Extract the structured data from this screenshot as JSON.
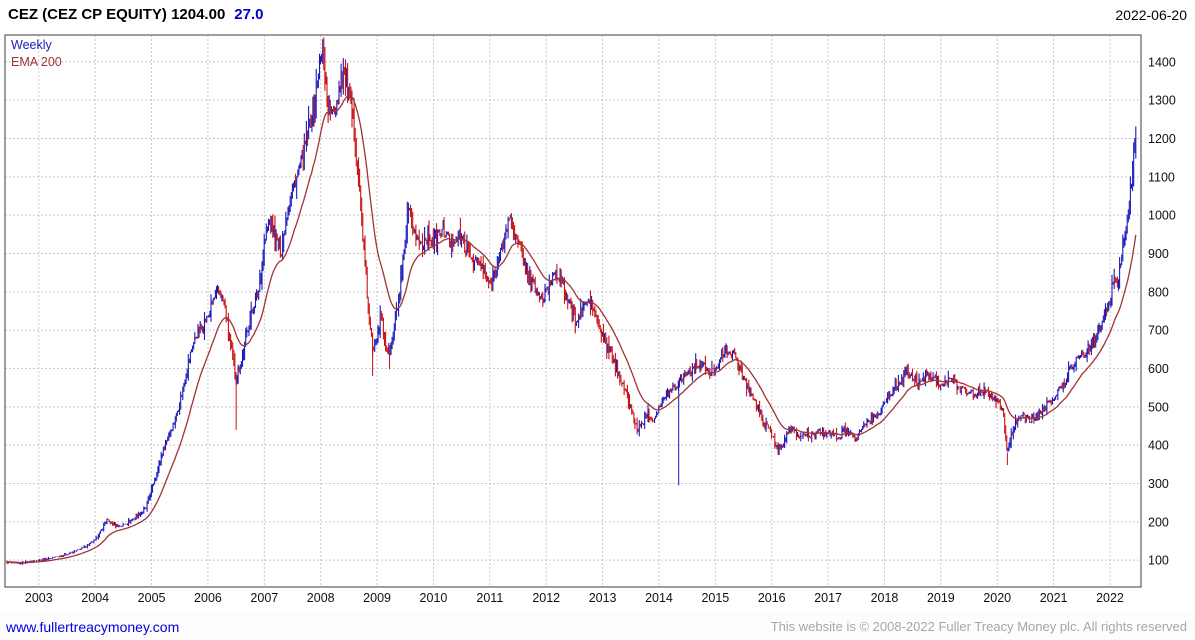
{
  "header": {
    "title": "CEZ (CEZ CP EQUITY) 1204.00",
    "change": "27.0",
    "date": "2022-06-20"
  },
  "legend": [
    {
      "label": "Weekly",
      "color": "#1a1ab8"
    },
    {
      "label": "EMA 200",
      "color": "#a03434"
    }
  ],
  "footer": {
    "link": "www.fullertreacymoney.com",
    "copyright": "This website is © 2008-2022 Fuller Treacy Money plc. All rights reserved"
  },
  "chart_data": {
    "type": "candlestick",
    "title": "CEZ (CEZ CP EQUITY)",
    "frequency": "Weekly",
    "overlay": "EMA 200",
    "last_price": 1204.0,
    "change": 27.0,
    "xlim": [
      2002.4,
      2022.55
    ],
    "ylim": [
      30,
      1470
    ],
    "x_ticks": [
      2003,
      2004,
      2005,
      2006,
      2007,
      2008,
      2009,
      2010,
      2011,
      2012,
      2013,
      2014,
      2015,
      2016,
      2017,
      2018,
      2019,
      2020,
      2021,
      2022
    ],
    "y_ticks": [
      100,
      200,
      300,
      400,
      500,
      600,
      700,
      800,
      900,
      1000,
      1100,
      1200,
      1300,
      1400
    ],
    "grid": "dashed",
    "legend_position": "top-left",
    "up_color": "#1a1ab8",
    "down_color": "#cc1111",
    "ema_color": "#a03434",
    "grid_color": "#c8c8c8",
    "border_color": "#3c3c3c",
    "ema_span_weeks": 29,
    "close_anchors": [
      [
        2002.42,
        95
      ],
      [
        2002.6,
        90
      ],
      [
        2002.75,
        94
      ],
      [
        2002.9,
        98
      ],
      [
        2003.0,
        100
      ],
      [
        2003.15,
        103
      ],
      [
        2003.3,
        108
      ],
      [
        2003.45,
        113
      ],
      [
        2003.6,
        120
      ],
      [
        2003.75,
        130
      ],
      [
        2003.9,
        142
      ],
      [
        2004.0,
        152
      ],
      [
        2004.1,
        175
      ],
      [
        2004.2,
        205
      ],
      [
        2004.3,
        195
      ],
      [
        2004.45,
        188
      ],
      [
        2004.6,
        200
      ],
      [
        2004.75,
        215
      ],
      [
        2004.9,
        235
      ],
      [
        2005.0,
        285
      ],
      [
        2005.1,
        330
      ],
      [
        2005.2,
        385
      ],
      [
        2005.3,
        425
      ],
      [
        2005.4,
        460
      ],
      [
        2005.5,
        510
      ],
      [
        2005.6,
        580
      ],
      [
        2005.7,
        645
      ],
      [
        2005.8,
        690
      ],
      [
        2005.9,
        710
      ],
      [
        2006.0,
        735
      ],
      [
        2006.1,
        780
      ],
      [
        2006.2,
        805
      ],
      [
        2006.3,
        760
      ],
      [
        2006.4,
        660
      ],
      [
        2006.5,
        575
      ],
      [
        2006.6,
        620
      ],
      [
        2006.7,
        700
      ],
      [
        2006.8,
        760
      ],
      [
        2006.9,
        800
      ],
      [
        2007.0,
        930
      ],
      [
        2007.1,
        985
      ],
      [
        2007.2,
        940
      ],
      [
        2007.3,
        905
      ],
      [
        2007.4,
        1005
      ],
      [
        2007.5,
        1070
      ],
      [
        2007.6,
        1110
      ],
      [
        2007.7,
        1165
      ],
      [
        2007.8,
        1230
      ],
      [
        2007.9,
        1300
      ],
      [
        2007.97,
        1390
      ],
      [
        2008.05,
        1425
      ],
      [
        2008.12,
        1300
      ],
      [
        2008.2,
        1255
      ],
      [
        2008.3,
        1310
      ],
      [
        2008.4,
        1380
      ],
      [
        2008.47,
        1340
      ],
      [
        2008.55,
        1270
      ],
      [
        2008.62,
        1180
      ],
      [
        2008.7,
        1050
      ],
      [
        2008.78,
        880
      ],
      [
        2008.85,
        740
      ],
      [
        2008.92,
        650
      ],
      [
        2009.0,
        690
      ],
      [
        2009.07,
        740
      ],
      [
        2009.15,
        660
      ],
      [
        2009.22,
        640
      ],
      [
        2009.3,
        700
      ],
      [
        2009.4,
        800
      ],
      [
        2009.5,
        920
      ],
      [
        2009.55,
        1005
      ],
      [
        2009.62,
        980
      ],
      [
        2009.7,
        940
      ],
      [
        2009.8,
        925
      ],
      [
        2009.9,
        950
      ],
      [
        2010.0,
        935
      ],
      [
        2010.1,
        950
      ],
      [
        2010.2,
        960
      ],
      [
        2010.3,
        925
      ],
      [
        2010.4,
        945
      ],
      [
        2010.5,
        940
      ],
      [
        2010.6,
        905
      ],
      [
        2010.7,
        885
      ],
      [
        2010.8,
        875
      ],
      [
        2010.9,
        855
      ],
      [
        2011.0,
        815
      ],
      [
        2011.1,
        855
      ],
      [
        2011.2,
        905
      ],
      [
        2011.3,
        965
      ],
      [
        2011.37,
        1000
      ],
      [
        2011.45,
        945
      ],
      [
        2011.55,
        905
      ],
      [
        2011.65,
        860
      ],
      [
        2011.75,
        825
      ],
      [
        2011.85,
        795
      ],
      [
        2011.95,
        780
      ],
      [
        2012.05,
        815
      ],
      [
        2012.15,
        855
      ],
      [
        2012.25,
        840
      ],
      [
        2012.35,
        790
      ],
      [
        2012.45,
        755
      ],
      [
        2012.55,
        720
      ],
      [
        2012.65,
        760
      ],
      [
        2012.75,
        775
      ],
      [
        2012.85,
        750
      ],
      [
        2012.95,
        700
      ],
      [
        2013.05,
        665
      ],
      [
        2013.15,
        640
      ],
      [
        2013.25,
        600
      ],
      [
        2013.35,
        565
      ],
      [
        2013.45,
        520
      ],
      [
        2013.55,
        470
      ],
      [
        2013.62,
        440
      ],
      [
        2013.7,
        455
      ],
      [
        2013.8,
        485
      ],
      [
        2013.9,
        465
      ],
      [
        2014.0,
        500
      ],
      [
        2014.1,
        520
      ],
      [
        2014.2,
        545
      ],
      [
        2014.3,
        555
      ],
      [
        2014.4,
        575
      ],
      [
        2014.5,
        590
      ],
      [
        2014.6,
        600
      ],
      [
        2014.7,
        615
      ],
      [
        2014.8,
        605
      ],
      [
        2014.9,
        585
      ],
      [
        2015.0,
        600
      ],
      [
        2015.1,
        630
      ],
      [
        2015.2,
        650
      ],
      [
        2015.3,
        640
      ],
      [
        2015.4,
        615
      ],
      [
        2015.5,
        575
      ],
      [
        2015.6,
        545
      ],
      [
        2015.7,
        515
      ],
      [
        2015.8,
        480
      ],
      [
        2015.9,
        450
      ],
      [
        2016.0,
        430
      ],
      [
        2016.1,
        390
      ],
      [
        2016.2,
        405
      ],
      [
        2016.3,
        440
      ],
      [
        2016.4,
        435
      ],
      [
        2016.5,
        420
      ],
      [
        2016.6,
        430
      ],
      [
        2016.7,
        425
      ],
      [
        2016.8,
        430
      ],
      [
        2016.9,
        435
      ],
      [
        2017.0,
        430
      ],
      [
        2017.1,
        425
      ],
      [
        2017.2,
        420
      ],
      [
        2017.3,
        440
      ],
      [
        2017.4,
        425
      ],
      [
        2017.5,
        415
      ],
      [
        2017.6,
        450
      ],
      [
        2017.7,
        460
      ],
      [
        2017.8,
        470
      ],
      [
        2017.9,
        485
      ],
      [
        2018.0,
        510
      ],
      [
        2018.1,
        535
      ],
      [
        2018.2,
        555
      ],
      [
        2018.3,
        570
      ],
      [
        2018.4,
        590
      ],
      [
        2018.5,
        575
      ],
      [
        2018.6,
        560
      ],
      [
        2018.7,
        580
      ],
      [
        2018.8,
        585
      ],
      [
        2018.9,
        575
      ],
      [
        2019.0,
        555
      ],
      [
        2019.1,
        565
      ],
      [
        2019.2,
        570
      ],
      [
        2019.3,
        555
      ],
      [
        2019.4,
        545
      ],
      [
        2019.5,
        540
      ],
      [
        2019.6,
        530
      ],
      [
        2019.7,
        540
      ],
      [
        2019.8,
        545
      ],
      [
        2019.9,
        530
      ],
      [
        2020.0,
        515
      ],
      [
        2020.1,
        490
      ],
      [
        2020.18,
        380
      ],
      [
        2020.28,
        445
      ],
      [
        2020.38,
        470
      ],
      [
        2020.48,
        475
      ],
      [
        2020.58,
        465
      ],
      [
        2020.68,
        475
      ],
      [
        2020.78,
        485
      ],
      [
        2020.88,
        505
      ],
      [
        2021.0,
        525
      ],
      [
        2021.1,
        545
      ],
      [
        2021.2,
        565
      ],
      [
        2021.3,
        600
      ],
      [
        2021.4,
        625
      ],
      [
        2021.5,
        635
      ],
      [
        2021.6,
        645
      ],
      [
        2021.7,
        670
      ],
      [
        2021.8,
        695
      ],
      [
        2021.9,
        735
      ],
      [
        2022.0,
        775
      ],
      [
        2022.07,
        845
      ],
      [
        2022.14,
        820
      ],
      [
        2022.2,
        895
      ],
      [
        2022.27,
        950
      ],
      [
        2022.33,
        1010
      ],
      [
        2022.4,
        1120
      ],
      [
        2022.45,
        1195
      ],
      [
        2022.47,
        1204
      ]
    ],
    "spikes": [
      {
        "t": 2006.5,
        "low": 440,
        "dir": "down"
      },
      {
        "t": 2008.92,
        "low": 580,
        "dir": "down"
      },
      {
        "t": 2009.22,
        "low": 598,
        "dir": "down"
      },
      {
        "t": 2014.35,
        "low": 295,
        "dir": "up"
      },
      {
        "t": 2020.18,
        "low": 348,
        "dir": "down"
      }
    ]
  }
}
